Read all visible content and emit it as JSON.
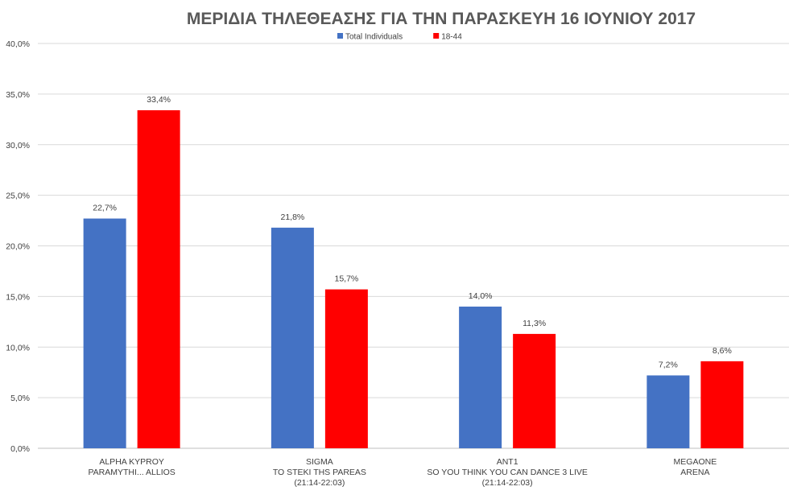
{
  "chart_data": {
    "type": "bar",
    "title": "ΜΕΡΙΔΙΑ ΤΗΛΕΘΕΑΣΗΣ ΓΙΑ ΤΗΝ ΠΑΡΑΣΚΕΥΗ 16 ΙΟΥΝΙΟΥ 2017",
    "categories": [
      [
        "ALPHA KYPROY",
        "PARAMYTHI... ALLIOS"
      ],
      [
        "SIGMA",
        "TO STEKI THS PAREAS",
        "(21:14-22:03)"
      ],
      [
        "ANT1",
        "SO YOU THINK YOU CAN DANCE 3 LIVE",
        "(21:14-22:03)"
      ],
      [
        "MEGAONE",
        "ARENA"
      ]
    ],
    "series": [
      {
        "name": "Total Individuals",
        "color": "#4472c4",
        "values": [
          22.7,
          21.8,
          14.0,
          7.2
        ],
        "labels": [
          "22,7%",
          "21,8%",
          "14,0%",
          "7,2%"
        ]
      },
      {
        "name": "18-44",
        "color": "#ff0000",
        "values": [
          33.4,
          15.7,
          11.3,
          8.6
        ],
        "labels": [
          "33,4%",
          "15,7%",
          "11,3%",
          "8,6%"
        ]
      }
    ],
    "ylim": [
      0,
      40
    ],
    "yticks": [
      0,
      5,
      10,
      15,
      20,
      25,
      30,
      35,
      40
    ],
    "ytick_labels": [
      "0,0%",
      "5,0%",
      "10,0%",
      "15,0%",
      "20,0%",
      "25,0%",
      "30,0%",
      "35,0%",
      "40,0%"
    ],
    "grid": true,
    "legend_position": "top"
  }
}
